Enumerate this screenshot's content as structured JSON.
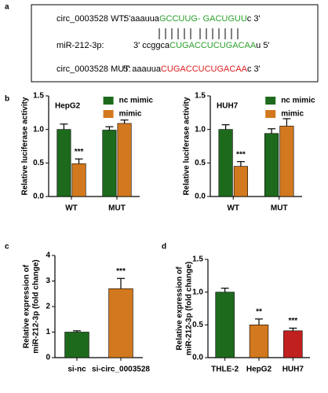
{
  "panel_labels": [
    "a",
    "b",
    "c",
    "d"
  ],
  "sequences": [
    {
      "name": "circ_0003528  WT:",
      "segments": [
        {
          "text": "5'aaauua",
          "color": "#000000"
        },
        {
          "text": "GCCUUG- GACUGUU",
          "color": "#2aa02a"
        },
        {
          "text": "c 3'",
          "color": "#000000"
        }
      ]
    },
    {
      "name": "miR-212-3p:",
      "segments": [
        {
          "text": "3' ccggca",
          "color": "#000000"
        },
        {
          "text": "CUGACCUCUGACAA",
          "color": "#2aa02a"
        },
        {
          "text": "u  5'",
          "color": "#000000"
        }
      ]
    },
    {
      "name": "circ_0003528  MUT:",
      "segments": [
        {
          "text": "5' aaauua",
          "color": "#000000"
        },
        {
          "text": "CUGACCUCUGACAA",
          "color": "#e02020"
        },
        {
          "text": "c 3'",
          "color": "#000000"
        }
      ]
    }
  ],
  "chart_data": [
    {
      "type": "bar",
      "title": "HepG2",
      "ylabel": [
        "Relative luciferase activity"
      ],
      "categories": [
        "WT",
        "MUT"
      ],
      "series": [
        {
          "name": "nc mimic",
          "color": "#1d6a1d",
          "values": [
            1.0,
            0.99
          ],
          "errors": [
            0.08,
            0.05
          ],
          "significance": [
            null,
            null
          ]
        },
        {
          "name": "mimic",
          "color": "#d2781e",
          "values": [
            0.49,
            1.09
          ],
          "errors": [
            0.07,
            0.05
          ],
          "significance": [
            "***",
            null
          ]
        }
      ],
      "ylim": [
        0,
        1.5
      ],
      "yticks": [
        {
          "value": 0,
          "label": "0.0"
        },
        0.5,
        {
          "value": 1,
          "label": "1.0"
        },
        1.5
      ]
    },
    {
      "type": "bar",
      "title": "HUH7",
      "ylabel": [
        "Relative luciferase activity"
      ],
      "categories": [
        "WT",
        "MUT"
      ],
      "series": [
        {
          "name": "nc mimic",
          "color": "#1d6a1d",
          "values": [
            1.0,
            0.94
          ],
          "errors": [
            0.07,
            0.07
          ],
          "significance": [
            null,
            null
          ]
        },
        {
          "name": "mimic",
          "color": "#d2781e",
          "values": [
            0.45,
            1.05
          ],
          "errors": [
            0.07,
            0.11
          ],
          "significance": [
            "***",
            null
          ]
        }
      ],
      "ylim": [
        0,
        1.5
      ],
      "yticks": [
        {
          "value": 0,
          "label": "0.0"
        },
        0.5,
        {
          "value": 1,
          "label": "1.0"
        },
        1.5
      ]
    },
    {
      "type": "bar",
      "ylabel": [
        "Relative expression of",
        "miR-212-3p (fold change)"
      ],
      "categories": [
        "si-nc",
        "si-circ_0003528"
      ],
      "values": [
        1.0,
        2.7
      ],
      "errors": [
        0.05,
        0.4
      ],
      "significance": [
        null,
        "***"
      ],
      "colors": [
        "#1d6a1d",
        "#d2781e"
      ],
      "ylim": [
        0,
        4
      ],
      "yticks": [
        0,
        1,
        2,
        3,
        4
      ]
    },
    {
      "type": "bar",
      "ylabel": [
        "Relative expression of",
        "miR-212-3p (fold change)"
      ],
      "categories": [
        "THLE-2",
        "HepG2",
        "HUH7"
      ],
      "values": [
        1.0,
        0.5,
        0.41
      ],
      "errors": [
        0.06,
        0.09,
        0.04
      ],
      "significance": [
        null,
        "**",
        "***"
      ],
      "colors": [
        "#1d6a1d",
        "#d2781e",
        "#c0201e"
      ],
      "ylim": [
        0,
        1.5
      ],
      "yticks": [
        {
          "value": 0,
          "label": "0.0"
        },
        0.5,
        {
          "value": 1,
          "label": "1.0"
        },
        1.5
      ]
    }
  ]
}
